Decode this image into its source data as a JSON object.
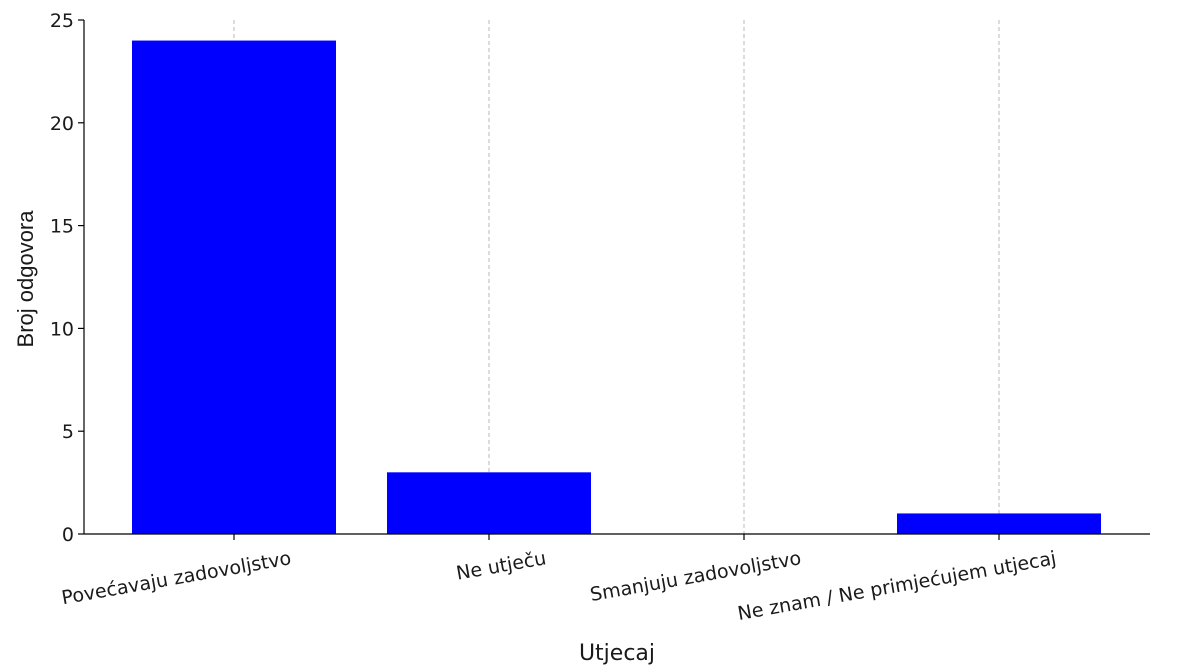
{
  "chart_data": {
    "type": "bar",
    "categories": [
      "Povećavaju zadovoljstvo",
      "Ne utječu",
      "Smanjuju zadovoljstvo",
      "Ne znam / Ne primjećujem utjecaj"
    ],
    "values": [
      24,
      3,
      0,
      1
    ],
    "xlabel": "Utjecaj",
    "ylabel": "Broj odgovora",
    "ylim": [
      0,
      25
    ],
    "yticks": [
      0,
      5,
      10,
      15,
      20,
      25
    ],
    "grid": "vertical dashed",
    "bar_color": "#0000ff"
  }
}
